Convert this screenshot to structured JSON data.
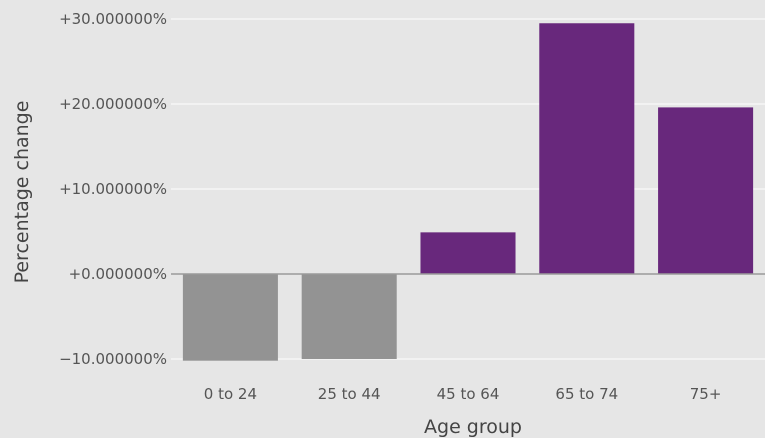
{
  "chart_data": {
    "type": "bar",
    "categories": [
      "0 to 24",
      "25 to 44",
      "45 to 64",
      "65 to 74",
      "75+"
    ],
    "values": [
      -10.2,
      -10.0,
      4.9,
      29.5,
      19.6
    ],
    "xlabel": "Age group",
    "ylabel": "Percentage change",
    "ylim": [
      -10.6,
      30.3
    ],
    "yticks": [
      -10,
      0,
      10,
      20,
      30
    ],
    "ytick_labels": [
      "−10.000000%",
      "+0.000000%",
      "+10.000000%",
      "+20.000000%",
      "+30.000000%"
    ],
    "grid": true,
    "colors": {
      "background": "#e6e6e6",
      "grid": "#f5f5f5",
      "zero_line": "#9a9a9a",
      "positive": "#68287c",
      "negative": "#939393"
    }
  }
}
